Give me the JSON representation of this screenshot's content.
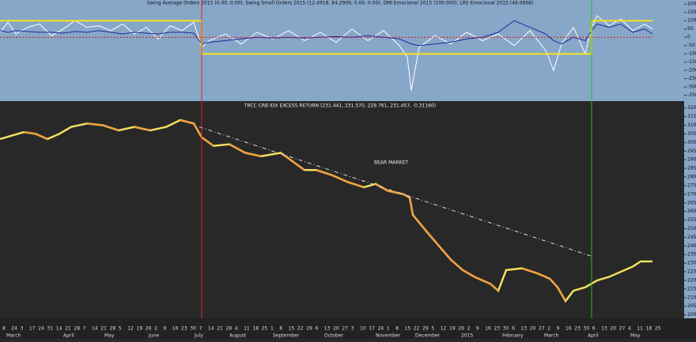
{
  "chart_data": [
    {
      "type": "line",
      "title": "Swing Average Orders 2015 (0.00, 0.00), Swing Small Orders 2015 (12.4918, 84.2909, 0.00, 0.00), DMI Emocional 2015 (100.000), LRS Emocional 2015 (48.0668)",
      "xlim": [
        0,
        860
      ],
      "ylim": [
        -385,
        225
      ],
      "yticks": [
        200,
        150,
        100,
        50,
        0,
        -50,
        -100,
        -150,
        -200,
        -250,
        -300,
        -350
      ],
      "series": [
        {
          "color": "#ffffff",
          "x": [
            0,
            10,
            20,
            35,
            50,
            65,
            80,
            95,
            110,
            125,
            140,
            155,
            170,
            185,
            200,
            215,
            230,
            245,
            255,
            265,
            285,
            305,
            325,
            345,
            365,
            385,
            405,
            425,
            445,
            465,
            485,
            505,
            515,
            520,
            530,
            550,
            570,
            590,
            610,
            630,
            650,
            670,
            690,
            700,
            710,
            725,
            740,
            748,
            755,
            770,
            785,
            800,
            815,
            825
          ],
          "values": [
            30,
            90,
            20,
            60,
            80,
            10,
            50,
            100,
            60,
            70,
            40,
            80,
            20,
            60,
            -10,
            70,
            40,
            90,
            -60,
            -20,
            20,
            -40,
            30,
            -10,
            40,
            -20,
            30,
            -30,
            50,
            -20,
            40,
            -50,
            -120,
            -320,
            -60,
            10,
            -40,
            30,
            -20,
            20,
            -50,
            40,
            -80,
            -200,
            -40,
            60,
            -100,
            60,
            130,
            70,
            110,
            40,
            80,
            50
          ]
        },
        {
          "color": "#1a2a9a",
          "x": [
            0,
            10,
            20,
            35,
            50,
            65,
            80,
            95,
            110,
            125,
            140,
            155,
            170,
            185,
            200,
            215,
            230,
            245,
            255,
            265,
            285,
            305,
            325,
            345,
            365,
            385,
            405,
            425,
            445,
            465,
            485,
            505,
            515,
            520,
            530,
            550,
            570,
            590,
            610,
            630,
            650,
            670,
            690,
            700,
            710,
            725,
            740,
            748,
            755,
            770,
            785,
            800,
            815,
            825
          ],
          "values": [
            40,
            30,
            40,
            35,
            30,
            30,
            25,
            35,
            30,
            40,
            30,
            20,
            30,
            25,
            20,
            30,
            30,
            25,
            -40,
            -30,
            -20,
            -10,
            0,
            -5,
            0,
            -5,
            0,
            5,
            0,
            10,
            0,
            -10,
            -30,
            -40,
            -50,
            -40,
            -30,
            -10,
            0,
            30,
            100,
            60,
            20,
            -20,
            -40,
            0,
            -20,
            40,
            80,
            60,
            80,
            30,
            50,
            20
          ]
        },
        {
          "color": "#e01010",
          "x": [
            0,
            825
          ],
          "values": [
            0,
            0
          ]
        },
        {
          "color": "#f5e020",
          "x": [
            0,
            255,
            255,
            748,
            748,
            825
          ],
          "values": [
            100,
            100,
            -100,
            -100,
            100,
            100
          ]
        }
      ]
    },
    {
      "type": "line",
      "title": "TRCC CRB IDX EXCESS RETURN (231.441, 231.570, 229.761, 231.457, -0.31160)",
      "annotation": "BEAR MARKET",
      "xlim": [
        0,
        860
      ],
      "ylim": [
        198,
        324
      ],
      "yticks": [
        320,
        315,
        310,
        305,
        300,
        295,
        290,
        285,
        280,
        275,
        270,
        265,
        260,
        255,
        250,
        245,
        240,
        235,
        230,
        225,
        220,
        215,
        210,
        205,
        200
      ],
      "series": [
        {
          "color": "#f0e060",
          "x": [
            0,
            15,
            30,
            45,
            60,
            75,
            90,
            110,
            130,
            150,
            170,
            190,
            210,
            228,
            245,
            255,
            270,
            290,
            310,
            330,
            355,
            370,
            385,
            400,
            420,
            440,
            460,
            475,
            490,
            510,
            518,
            522,
            540,
            555,
            570,
            585,
            600,
            620,
            630,
            640,
            660,
            680,
            695,
            705,
            715,
            725,
            740,
            755,
            770,
            790,
            800,
            810,
            825
          ],
          "values": [
            302,
            304,
            306,
            305,
            302,
            305,
            309,
            311,
            310,
            307,
            309,
            307,
            309,
            313,
            311,
            303,
            298,
            299,
            294,
            292,
            294,
            289,
            284,
            284,
            281,
            277,
            274,
            276,
            272,
            270,
            268,
            258,
            248,
            240,
            232,
            226,
            222,
            218,
            214,
            226,
            227,
            224,
            221,
            216,
            208,
            214,
            216,
            220,
            222,
            226,
            228,
            231,
            231
          ]
        },
        {
          "color": "#dddddd",
          "x": [
            252,
            748
          ],
          "values": [
            309,
            234
          ]
        }
      ]
    },
    {
      "type": "axis",
      "days": [
        "8",
        "24",
        "3",
        "17",
        "24",
        "31",
        "14",
        "21",
        "28",
        "7",
        "14",
        "21",
        "28",
        "5",
        "12",
        "19",
        "26",
        "2",
        "9",
        "16",
        "23",
        "30",
        "7",
        "14",
        "21",
        "28",
        "4",
        "11",
        "18",
        "25",
        "1",
        "8",
        "15",
        "22",
        "29",
        "6",
        "13",
        "20",
        "27",
        "3",
        "10",
        "17",
        "24",
        "1",
        "8",
        "15",
        "22",
        "29",
        "5",
        "12",
        "19",
        "26",
        "2",
        "9",
        "16",
        "23",
        "30",
        "6",
        "13",
        "20",
        "27",
        "2",
        "9",
        "16",
        "23",
        "30",
        "6",
        "13",
        "20",
        "27",
        "4",
        "11",
        "18",
        "25"
      ],
      "months": [
        "March",
        "April",
        "May",
        "June",
        "July",
        "August",
        "September",
        "October",
        "November",
        "December",
        "2015",
        "February",
        "March",
        "April",
        "May"
      ]
    }
  ]
}
